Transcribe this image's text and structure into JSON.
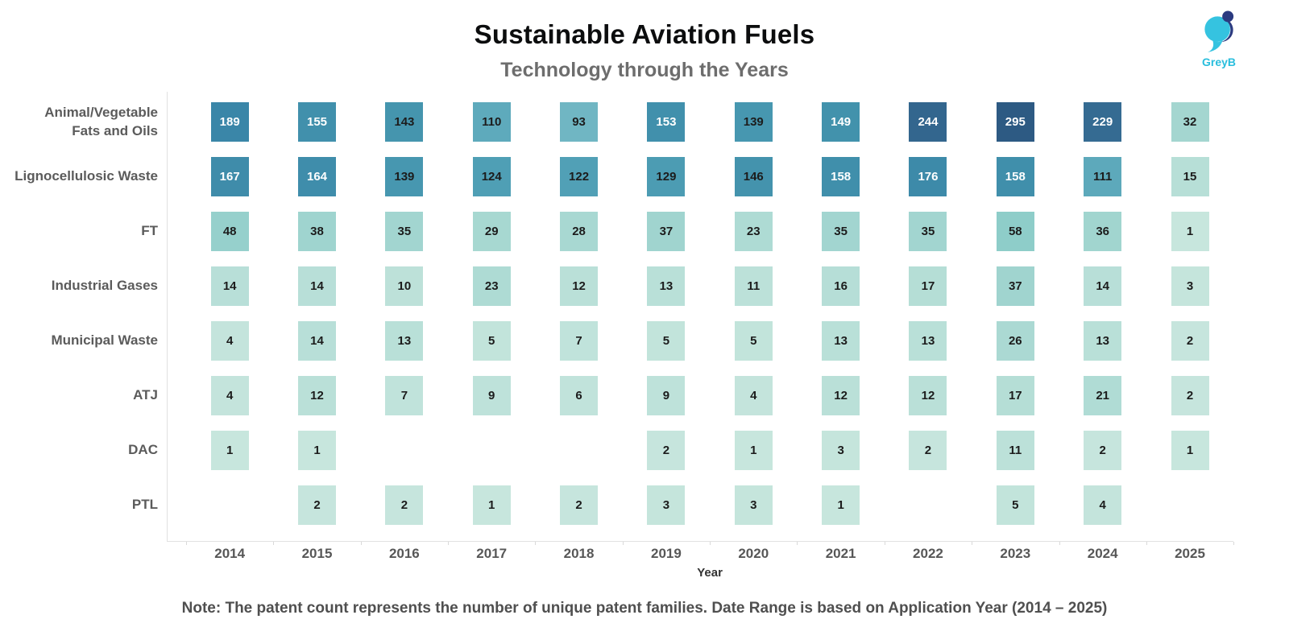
{
  "header": {
    "title": "Sustainable Aviation Fuels",
    "subtitle": "Technology through the Years",
    "logo_text": "GreyB"
  },
  "chart_data": {
    "type": "heatmap",
    "title": "Sustainable Aviation Fuels",
    "subtitle": "Technology through the Years",
    "xlabel": "Year",
    "ylabel": "",
    "categories": [
      "2014",
      "2015",
      "2016",
      "2017",
      "2018",
      "2019",
      "2020",
      "2021",
      "2022",
      "2023",
      "2024",
      "2025"
    ],
    "rows": [
      {
        "label": "Animal/Vegetable\nFats and Oils",
        "values": [
          189,
          155,
          143,
          110,
          93,
          153,
          139,
          149,
          244,
          295,
          229,
          32
        ]
      },
      {
        "label": "Lignocellulosic Waste",
        "values": [
          167,
          164,
          139,
          124,
          122,
          129,
          146,
          158,
          176,
          158,
          111,
          15
        ]
      },
      {
        "label": "FT",
        "values": [
          48,
          38,
          35,
          29,
          28,
          37,
          23,
          35,
          35,
          58,
          36,
          1
        ]
      },
      {
        "label": "Industrial Gases",
        "values": [
          14,
          14,
          10,
          23,
          12,
          13,
          11,
          16,
          17,
          37,
          14,
          3
        ]
      },
      {
        "label": "Municipal Waste",
        "values": [
          4,
          14,
          13,
          5,
          7,
          5,
          5,
          13,
          13,
          26,
          13,
          2
        ]
      },
      {
        "label": "ATJ",
        "values": [
          4,
          12,
          7,
          9,
          6,
          9,
          4,
          12,
          12,
          17,
          21,
          2
        ]
      },
      {
        "label": "DAC",
        "values": [
          1,
          1,
          null,
          null,
          null,
          2,
          1,
          3,
          2,
          11,
          2,
          1
        ]
      },
      {
        "label": "PTL",
        "values": [
          null,
          2,
          2,
          1,
          2,
          3,
          3,
          1,
          null,
          5,
          4,
          null
        ]
      }
    ],
    "value_range": [
      1,
      295
    ],
    "legend": "none",
    "grid": "off",
    "color_scale": {
      "stops": [
        [
          1,
          "#c7e6dd"
        ],
        [
          30,
          "#a6d7d1"
        ],
        [
          60,
          "#8cccc8"
        ],
        [
          95,
          "#6eb5c3"
        ],
        [
          125,
          "#4e9eb4"
        ],
        [
          150,
          "#4291ac"
        ],
        [
          190,
          "#3a86a8"
        ],
        [
          232,
          "#356990"
        ],
        [
          295,
          "#2d5a83"
        ]
      ],
      "text_white_threshold": 148,
      "text_dark_color": "#1c1c1c",
      "text_light_color": "#ffffff"
    }
  },
  "footer": {
    "note": "Note: The patent count represents the number of unique patent families. Date Range is based on Application Year (2014 – 2025)"
  },
  "brand": {
    "cyan": "#35c3e0",
    "navy": "#2b3a80"
  }
}
